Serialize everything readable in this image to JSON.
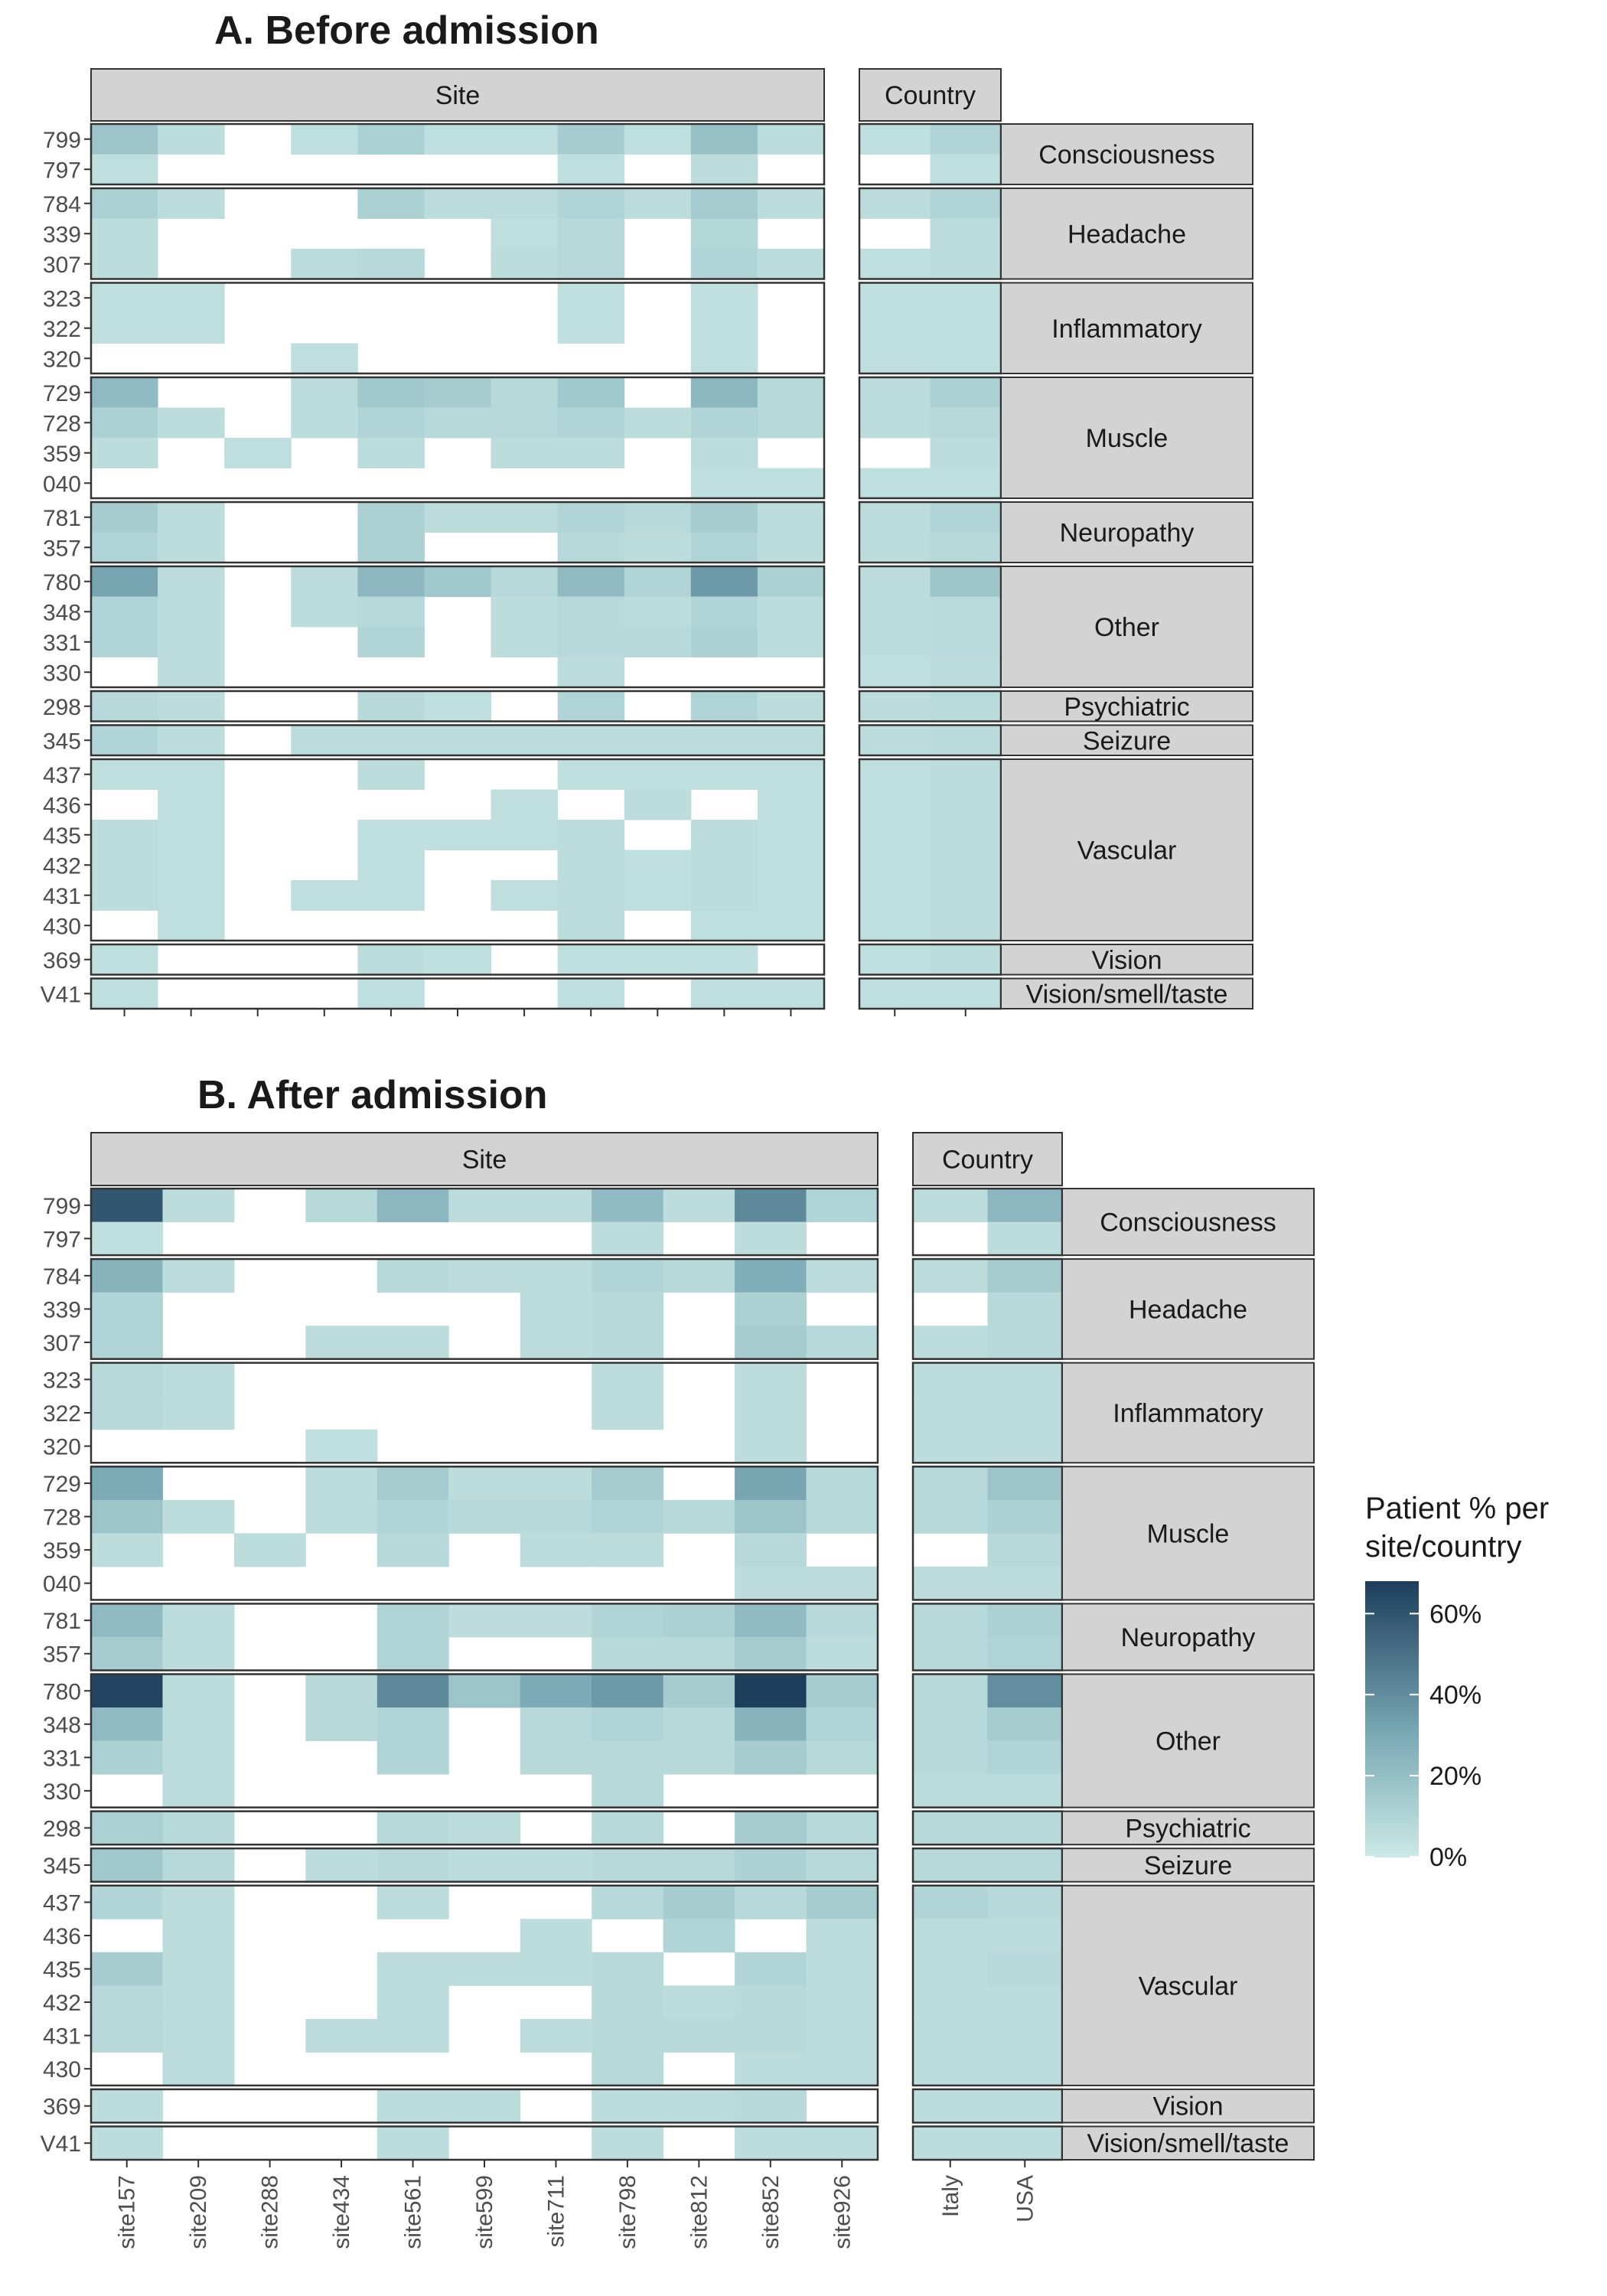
{
  "chart_data": [
    {
      "type": "heatmap",
      "title": "A. Before admission",
      "facet_labels": {
        "site": "Site",
        "country": "Country"
      },
      "sites": [
        "site157",
        "site209",
        "site288",
        "site434",
        "site561",
        "site599",
        "site711",
        "site798",
        "site812",
        "site852",
        "site926"
      ],
      "countries": [
        "Italy",
        "USA"
      ],
      "show_x_tick_labels": false,
      "groups": [
        {
          "label": "Consciousness",
          "codes": [
            "799",
            "797"
          ]
        },
        {
          "label": "Headache",
          "codes": [
            "784",
            "339",
            "307"
          ]
        },
        {
          "label": "Inflammatory",
          "codes": [
            "323",
            "322",
            "320"
          ]
        },
        {
          "label": "Muscle",
          "codes": [
            "729",
            "728",
            "359",
            "040"
          ]
        },
        {
          "label": "Neuropathy",
          "codes": [
            "781",
            "357"
          ]
        },
        {
          "label": "Other",
          "codes": [
            "780",
            "348",
            "331",
            "330"
          ]
        },
        {
          "label": "Psychiatric",
          "codes": [
            "298"
          ]
        },
        {
          "label": "Seizure",
          "codes": [
            "345"
          ]
        },
        {
          "label": "Vascular",
          "codes": [
            "437",
            "436",
            "435",
            "432",
            "431",
            "430"
          ]
        },
        {
          "label": "Vision",
          "codes": [
            "369"
          ]
        },
        {
          "label": "Vision/smell/taste",
          "codes": [
            "V41"
          ]
        }
      ],
      "site_values": {
        "799": [
          18,
          6,
          null,
          5,
          12,
          5,
          5,
          14,
          5,
          20,
          6
        ],
        "797": [
          5,
          null,
          null,
          null,
          null,
          null,
          null,
          5,
          null,
          6,
          null
        ],
        "784": [
          12,
          6,
          null,
          null,
          12,
          6,
          6,
          10,
          6,
          14,
          6
        ],
        "339": [
          6,
          null,
          null,
          null,
          null,
          null,
          5,
          8,
          null,
          9,
          null
        ],
        "307": [
          6,
          null,
          null,
          6,
          8,
          null,
          6,
          8,
          null,
          10,
          6
        ],
        "323": [
          5,
          5,
          null,
          null,
          null,
          null,
          null,
          5,
          null,
          5,
          null
        ],
        "322": [
          5,
          5,
          null,
          null,
          null,
          null,
          null,
          5,
          null,
          5,
          null
        ],
        "320": [
          null,
          null,
          null,
          5,
          null,
          null,
          null,
          null,
          null,
          5,
          null
        ],
        "729": [
          22,
          null,
          null,
          6,
          16,
          14,
          8,
          16,
          null,
          24,
          8
        ],
        "728": [
          12,
          6,
          null,
          6,
          10,
          8,
          8,
          10,
          6,
          10,
          8
        ],
        "359": [
          6,
          null,
          5,
          null,
          6,
          null,
          6,
          6,
          null,
          6,
          null
        ],
        "040": [
          null,
          null,
          null,
          null,
          null,
          null,
          null,
          null,
          null,
          5,
          5
        ],
        "781": [
          14,
          6,
          null,
          null,
          12,
          6,
          6,
          10,
          8,
          14,
          6
        ],
        "357": [
          10,
          6,
          null,
          null,
          12,
          null,
          null,
          8,
          6,
          10,
          6
        ],
        "780": [
          32,
          6,
          null,
          6,
          24,
          16,
          8,
          22,
          10,
          36,
          12
        ],
        "348": [
          10,
          6,
          null,
          6,
          8,
          null,
          6,
          8,
          6,
          10,
          6
        ],
        "331": [
          10,
          6,
          null,
          null,
          10,
          null,
          6,
          8,
          8,
          12,
          6
        ],
        "330": [
          null,
          6,
          null,
          null,
          null,
          null,
          null,
          6,
          null,
          null,
          null
        ],
        "298": [
          8,
          6,
          null,
          null,
          8,
          5,
          null,
          10,
          null,
          10,
          6
        ],
        "345": [
          10,
          6,
          null,
          6,
          6,
          6,
          6,
          6,
          6,
          6,
          6
        ],
        "437": [
          5,
          5,
          null,
          null,
          6,
          null,
          null,
          5,
          5,
          5,
          5
        ],
        "436": [
          null,
          5,
          null,
          null,
          null,
          null,
          5,
          null,
          6,
          null,
          5
        ],
        "435": [
          6,
          5,
          null,
          null,
          5,
          5,
          5,
          6,
          null,
          6,
          5
        ],
        "432": [
          6,
          5,
          null,
          null,
          5,
          null,
          null,
          6,
          5,
          6,
          5
        ],
        "431": [
          6,
          5,
          null,
          5,
          5,
          null,
          5,
          6,
          5,
          6,
          5
        ],
        "430": [
          null,
          5,
          null,
          null,
          null,
          null,
          null,
          6,
          null,
          5,
          5
        ],
        "369": [
          5,
          null,
          null,
          null,
          6,
          5,
          null,
          5,
          5,
          5,
          null
        ],
        "V41": [
          5,
          null,
          null,
          null,
          5,
          null,
          null,
          5,
          null,
          5,
          5
        ]
      },
      "country_values": {
        "799": [
          5,
          10
        ],
        "797": [
          null,
          5
        ],
        "784": [
          6,
          10
        ],
        "339": [
          null,
          6
        ],
        "307": [
          5,
          6
        ],
        "323": [
          5,
          5
        ],
        "322": [
          5,
          5
        ],
        "320": [
          5,
          5
        ],
        "729": [
          6,
          12
        ],
        "728": [
          6,
          8
        ],
        "359": [
          null,
          6
        ],
        "040": [
          5,
          5
        ],
        "781": [
          6,
          10
        ],
        "357": [
          6,
          8
        ],
        "780": [
          6,
          18
        ],
        "348": [
          6,
          7
        ],
        "331": [
          6,
          7
        ],
        "330": [
          5,
          6
        ],
        "298": [
          6,
          7
        ],
        "345": [
          6,
          7
        ],
        "437": [
          5,
          6
        ],
        "436": [
          5,
          6
        ],
        "435": [
          5,
          6
        ],
        "432": [
          5,
          6
        ],
        "431": [
          5,
          6
        ],
        "430": [
          5,
          6
        ],
        "369": [
          5,
          6
        ],
        "V41": [
          5,
          5
        ]
      }
    },
    {
      "type": "heatmap",
      "title": "B. After admission",
      "facet_labels": {
        "site": "Site",
        "country": "Country"
      },
      "sites": [
        "site157",
        "site209",
        "site288",
        "site434",
        "site561",
        "site599",
        "site711",
        "site798",
        "site812",
        "site852",
        "site926"
      ],
      "countries": [
        "Italy",
        "USA"
      ],
      "show_x_tick_labels": true,
      "groups": [
        {
          "label": "Consciousness",
          "codes": [
            "799",
            "797"
          ]
        },
        {
          "label": "Headache",
          "codes": [
            "784",
            "339",
            "307"
          ]
        },
        {
          "label": "Inflammatory",
          "codes": [
            "323",
            "322",
            "320"
          ]
        },
        {
          "label": "Muscle",
          "codes": [
            "729",
            "728",
            "359",
            "040"
          ]
        },
        {
          "label": "Neuropathy",
          "codes": [
            "781",
            "357"
          ]
        },
        {
          "label": "Other",
          "codes": [
            "780",
            "348",
            "331",
            "330"
          ]
        },
        {
          "label": "Psychiatric",
          "codes": [
            "298"
          ]
        },
        {
          "label": "Seizure",
          "codes": [
            "345"
          ]
        },
        {
          "label": "Vascular",
          "codes": [
            "437",
            "436",
            "435",
            "432",
            "431",
            "430"
          ]
        },
        {
          "label": "Vision",
          "codes": [
            "369"
          ]
        },
        {
          "label": "Vision/smell/taste",
          "codes": [
            "V41"
          ]
        }
      ],
      "site_values": {
        "799": [
          60,
          6,
          null,
          8,
          24,
          6,
          6,
          22,
          6,
          42,
          10
        ],
        "797": [
          5,
          null,
          null,
          null,
          null,
          null,
          null,
          6,
          null,
          6,
          null
        ],
        "784": [
          26,
          6,
          null,
          null,
          8,
          6,
          6,
          10,
          8,
          28,
          6
        ],
        "339": [
          10,
          null,
          null,
          null,
          null,
          null,
          6,
          8,
          null,
          12,
          null
        ],
        "307": [
          10,
          null,
          null,
          6,
          6,
          null,
          6,
          8,
          null,
          14,
          8
        ],
        "323": [
          8,
          6,
          null,
          null,
          null,
          null,
          null,
          6,
          null,
          6,
          null
        ],
        "322": [
          8,
          6,
          null,
          null,
          null,
          null,
          null,
          6,
          null,
          6,
          null
        ],
        "320": [
          null,
          null,
          null,
          5,
          null,
          null,
          null,
          null,
          null,
          6,
          null
        ],
        "729": [
          30,
          null,
          null,
          6,
          14,
          6,
          6,
          14,
          null,
          32,
          8
        ],
        "728": [
          18,
          6,
          null,
          6,
          10,
          8,
          8,
          10,
          8,
          18,
          8
        ],
        "359": [
          6,
          null,
          6,
          null,
          8,
          null,
          6,
          6,
          null,
          8,
          null
        ],
        "040": [
          null,
          null,
          null,
          null,
          null,
          null,
          null,
          null,
          null,
          6,
          6
        ],
        "781": [
          22,
          6,
          null,
          null,
          10,
          6,
          6,
          10,
          12,
          22,
          8
        ],
        "357": [
          14,
          6,
          null,
          null,
          10,
          null,
          null,
          8,
          8,
          14,
          6
        ],
        "780": [
          66,
          6,
          null,
          8,
          42,
          18,
          30,
          36,
          14,
          68,
          14
        ],
        "348": [
          22,
          6,
          null,
          8,
          10,
          null,
          8,
          10,
          8,
          26,
          10
        ],
        "331": [
          12,
          6,
          null,
          null,
          10,
          null,
          8,
          8,
          8,
          14,
          8
        ],
        "330": [
          null,
          6,
          null,
          null,
          null,
          null,
          null,
          8,
          null,
          null,
          null
        ],
        "298": [
          12,
          8,
          null,
          null,
          8,
          6,
          null,
          8,
          null,
          14,
          8
        ],
        "345": [
          16,
          8,
          null,
          6,
          8,
          6,
          6,
          8,
          8,
          12,
          8
        ],
        "437": [
          10,
          6,
          null,
          null,
          6,
          null,
          null,
          8,
          14,
          8,
          14
        ],
        "436": [
          null,
          6,
          null,
          null,
          null,
          null,
          6,
          null,
          10,
          null,
          6
        ],
        "435": [
          14,
          6,
          null,
          null,
          6,
          6,
          6,
          8,
          null,
          10,
          6
        ],
        "432": [
          8,
          6,
          null,
          null,
          6,
          null,
          null,
          8,
          6,
          8,
          6
        ],
        "431": [
          8,
          6,
          null,
          6,
          6,
          null,
          6,
          8,
          8,
          8,
          6
        ],
        "430": [
          null,
          6,
          null,
          null,
          null,
          null,
          null,
          8,
          null,
          6,
          6
        ],
        "369": [
          6,
          null,
          null,
          null,
          6,
          6,
          null,
          6,
          6,
          8,
          null
        ],
        "V41": [
          6,
          null,
          null,
          null,
          6,
          null,
          null,
          6,
          null,
          6,
          6
        ]
      },
      "country_values": {
        "799": [
          6,
          24
        ],
        "797": [
          null,
          6
        ],
        "784": [
          6,
          14
        ],
        "339": [
          null,
          8
        ],
        "307": [
          6,
          8
        ],
        "323": [
          6,
          6
        ],
        "322": [
          6,
          6
        ],
        "320": [
          6,
          6
        ],
        "729": [
          8,
          18
        ],
        "728": [
          8,
          12
        ],
        "359": [
          null,
          8
        ],
        "040": [
          6,
          6
        ],
        "781": [
          8,
          12
        ],
        "357": [
          8,
          10
        ],
        "780": [
          8,
          40
        ],
        "348": [
          8,
          14
        ],
        "331": [
          8,
          10
        ],
        "330": [
          6,
          6
        ],
        "298": [
          8,
          8
        ],
        "345": [
          8,
          8
        ],
        "437": [
          10,
          8
        ],
        "436": [
          6,
          6
        ],
        "435": [
          6,
          8
        ],
        "432": [
          6,
          6
        ],
        "431": [
          6,
          6
        ],
        "430": [
          6,
          6
        ],
        "369": [
          6,
          6
        ],
        "V41": [
          6,
          6
        ]
      }
    }
  ],
  "legend": {
    "title_lines": [
      "Patient % per",
      "site/country"
    ],
    "ticks": [
      {
        "value": 60,
        "label": "60%"
      },
      {
        "value": 40,
        "label": "40%"
      },
      {
        "value": 20,
        "label": "20%"
      },
      {
        "value": 0,
        "label": "0%"
      }
    ],
    "range": [
      0,
      68
    ],
    "colors": {
      "low": "#cceae6",
      "mid": "#7aa9b5",
      "high": "#1e3f5c"
    }
  },
  "colors": {
    "strip_fill": "#d3d3d3",
    "frame": "#333333",
    "text": "#1a1a1a",
    "axis_text": "#4d4d4d"
  }
}
